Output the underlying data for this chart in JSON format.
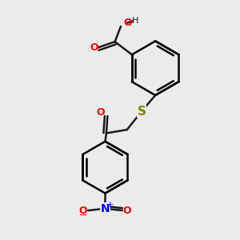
{
  "background_color": "#ebebeb",
  "bond_color": "#1a1a1a",
  "oxygen_color": "#ff0000",
  "sulfur_color": "#808000",
  "nitrogen_color": "#0000ff",
  "line_width": 1.8,
  "figsize": [
    3.0,
    3.0
  ],
  "dpi": 100,
  "xlim": [
    0,
    10
  ],
  "ylim": [
    0,
    10
  ]
}
